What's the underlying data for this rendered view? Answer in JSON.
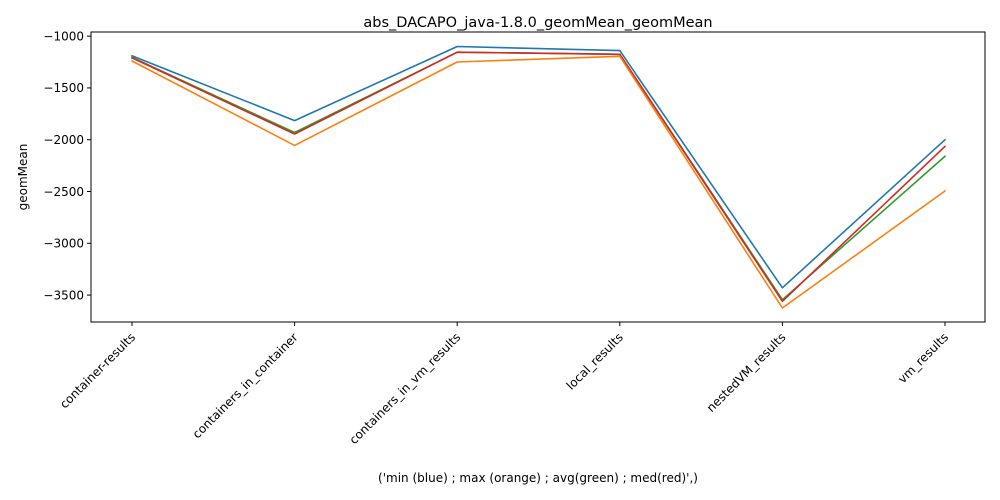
{
  "chart_data": {
    "type": "line",
    "title": "abs_DACAPO_java-1.8.0_geomMean_geomMean",
    "xlabel": "('min (blue) ; max (orange) ; avg(green) ; med(red)',)",
    "ylabel": "geomMean",
    "categories": [
      "container-results",
      "containers_in_container",
      "containers_in_vm_results",
      "local_results",
      "nestedVM_results",
      "vm_results"
    ],
    "ylim": [
      -3760,
      -960
    ],
    "yticks": [
      -1000,
      -1500,
      -2000,
      -2500,
      -3000,
      -3500
    ],
    "grid": false,
    "legend": "none",
    "series": [
      {
        "color": "#1f77b4",
        "values": [
          -1190,
          -1815,
          -1100,
          -1140,
          -3430,
          -2000
        ]
      },
      {
        "color": "#2ca02c",
        "values": [
          -1205,
          -1930,
          -1155,
          -1175,
          -3545,
          -2160
        ]
      },
      {
        "color": "#d62728",
        "values": [
          -1210,
          -1945,
          -1155,
          -1175,
          -3560,
          -2065
        ]
      },
      {
        "color": "#ff7f0e",
        "values": [
          -1240,
          -2055,
          -1250,
          -1195,
          -3625,
          -2495
        ]
      }
    ]
  }
}
